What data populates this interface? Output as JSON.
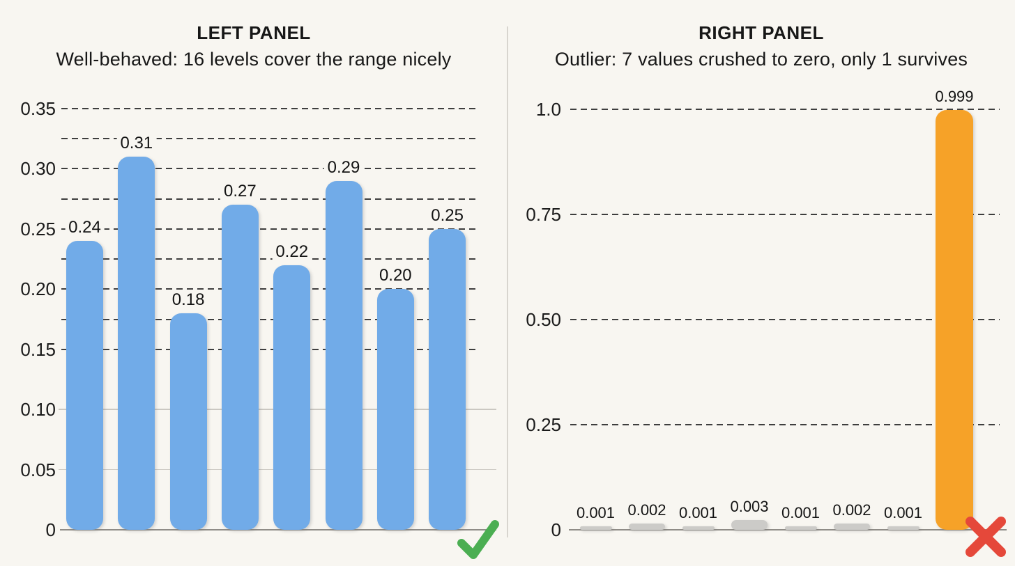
{
  "figure": {
    "background_color": "#F8F6F1",
    "divider": "vertical-line-between-panels"
  },
  "colors": {
    "left_bar_blue": "#71ABE8",
    "right_bar_gray": "#CCCBC8",
    "right_highlight_orange": "#F6A228",
    "checkmark_green": "#4BAE52",
    "cross_red": "#E5483A"
  },
  "chart_data": [
    {
      "type": "bar",
      "title": "LEFT PANEL",
      "subtitle": "Well-behaved: 16 levels cover the range nicely",
      "values": [
        0.24,
        0.31,
        0.18,
        0.27,
        0.22,
        0.29,
        0.2,
        0.25
      ],
      "value_labels": [
        "0.24",
        "0.31",
        "0.18",
        "0.27",
        "0.22",
        "0.29",
        "0.20",
        "0.25"
      ],
      "bar_color": "#71ABE8",
      "ylim": [
        0,
        0.35
      ],
      "yticks": [
        {
          "value": 0,
          "label": "0"
        },
        {
          "value": 0.05,
          "label": "0.05"
        },
        {
          "value": 0.1,
          "label": "0.10"
        },
        {
          "value": 0.15,
          "label": "0.15"
        },
        {
          "value": 0.2,
          "label": "0.20"
        },
        {
          "value": 0.25,
          "label": "0.25"
        },
        {
          "value": 0.3,
          "label": "0.30"
        },
        {
          "value": 0.35,
          "label": "0.35"
        }
      ],
      "gridlines": {
        "dashed": [
          0.15,
          0.175,
          0.2,
          0.225,
          0.25,
          0.275,
          0.3,
          0.325,
          0.35
        ],
        "solid_light": [
          0.05,
          0.1
        ]
      },
      "xlabel": "",
      "ylabel": "",
      "legend": "none",
      "verdict_icon": "green-checkmark"
    },
    {
      "type": "bar",
      "title": "RIGHT PANEL",
      "subtitle": "Outlier: 7 values crushed to zero, only 1 survives",
      "values": [
        0.001,
        0.002,
        0.001,
        0.003,
        0.001,
        0.002,
        0.001,
        0.999
      ],
      "value_labels": [
        "0.001",
        "0.002",
        "0.001",
        "0.003",
        "0.001",
        "0.002",
        "0.001",
        "0.999"
      ],
      "bar_color": "#CCCBC8",
      "highlight_index": 7,
      "highlight_color": "#F6A228",
      "ylim": [
        0,
        1.0
      ],
      "yticks": [
        {
          "value": 0,
          "label": "0"
        },
        {
          "value": 0.25,
          "label": "0.25"
        },
        {
          "value": 0.5,
          "label": "0.50"
        },
        {
          "value": 0.75,
          "label": "0.75"
        },
        {
          "value": 1.0,
          "label": "1.0"
        }
      ],
      "gridlines": {
        "dashed": [
          0.25,
          0.5,
          0.75,
          1.0
        ],
        "solid_light": []
      },
      "xlabel": "",
      "ylabel": "",
      "legend": "none",
      "verdict_icon": "red-cross"
    }
  ]
}
